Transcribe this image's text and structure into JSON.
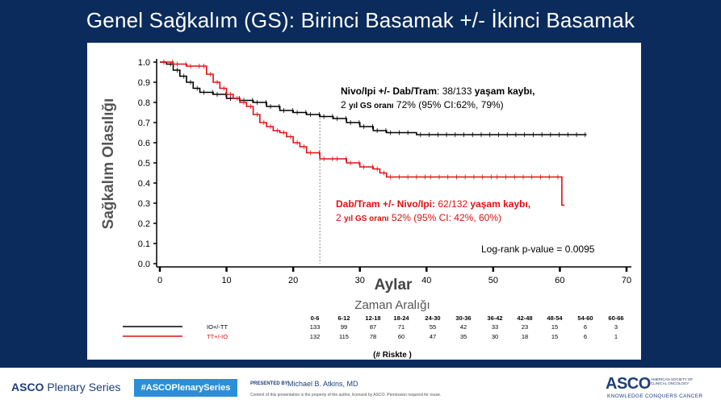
{
  "slide": {
    "title": "Genel Sağkalım (GS): Birinci Basamak +/- İkinci Basamak"
  },
  "chart_data": {
    "type": "line",
    "subtype": "kaplan-meier",
    "ylabel": "Sağkalım Olasılığı",
    "xlabel": "Aylar",
    "xlim": [
      0,
      70
    ],
    "ylim": [
      0,
      1.0
    ],
    "x_ticks": [
      0,
      10,
      20,
      30,
      40,
      50,
      60,
      70
    ],
    "y_ticks": [
      "0.0",
      "0.1",
      "0.2",
      "0.3",
      "0.4",
      "0.5",
      "0.6",
      "0.7",
      "0.8",
      "0.9",
      "1.0"
    ],
    "grid": false,
    "reference_line_x": 24,
    "series": [
      {
        "name": "IO+/-TT",
        "color": "#000000",
        "points": [
          [
            0,
            1.0
          ],
          [
            1,
            0.99
          ],
          [
            2,
            0.96
          ],
          [
            3,
            0.93
          ],
          [
            4,
            0.9
          ],
          [
            5,
            0.87
          ],
          [
            6,
            0.85
          ],
          [
            8,
            0.84
          ],
          [
            10,
            0.82
          ],
          [
            12,
            0.81
          ],
          [
            14,
            0.8
          ],
          [
            16,
            0.78
          ],
          [
            18,
            0.76
          ],
          [
            20,
            0.75
          ],
          [
            22,
            0.74
          ],
          [
            24,
            0.73
          ],
          [
            26,
            0.72
          ],
          [
            28,
            0.7
          ],
          [
            30,
            0.68
          ],
          [
            32,
            0.66
          ],
          [
            34,
            0.65
          ],
          [
            38,
            0.65
          ],
          [
            38.5,
            0.64
          ],
          [
            64,
            0.64
          ]
        ],
        "annotation_bold": "Nivo/Ipi +/- Dab/Tram",
        "annotation_rest": ": 38/133 ",
        "annotation_bold2": "yaşam kaybı,",
        "annotation_line2_prefix": "2 ",
        "annotation_line2_bold": "yıl GS oranı",
        "annotation_line2_rest": " 72% (95% CI:62%, 79%)"
      },
      {
        "name": "TT+/-IO",
        "color": "#e01010",
        "points": [
          [
            0,
            1.0
          ],
          [
            2,
            0.99
          ],
          [
            4,
            0.98
          ],
          [
            6,
            0.98
          ],
          [
            7,
            0.94
          ],
          [
            8,
            0.9
          ],
          [
            9,
            0.87
          ],
          [
            10,
            0.84
          ],
          [
            11,
            0.82
          ],
          [
            12,
            0.8
          ],
          [
            13,
            0.78
          ],
          [
            14,
            0.74
          ],
          [
            15,
            0.7
          ],
          [
            16,
            0.68
          ],
          [
            17,
            0.66
          ],
          [
            18,
            0.65
          ],
          [
            19,
            0.63
          ],
          [
            20,
            0.6
          ],
          [
            21,
            0.58
          ],
          [
            22,
            0.55
          ],
          [
            24,
            0.52
          ],
          [
            26,
            0.52
          ],
          [
            28,
            0.5
          ],
          [
            30,
            0.48
          ],
          [
            32,
            0.47
          ],
          [
            33,
            0.45
          ],
          [
            34,
            0.43
          ],
          [
            40,
            0.43
          ],
          [
            50,
            0.43
          ],
          [
            60,
            0.43
          ],
          [
            60.3,
            0.29
          ],
          [
            60.7,
            0.29
          ]
        ],
        "annotation_bold": "Dab/Tram +/- Nivo/Ipi:",
        "annotation_rest": " 62/132 ",
        "annotation_bold2": "yaşam kaybı,",
        "annotation_line2_prefix": "2 ",
        "annotation_line2_bold": "yıl GS oranı",
        "annotation_line2_rest": " 52% (95% CI: 42%, 60%)"
      }
    ],
    "logrank": "Log-rank p-value = 0.0095",
    "risk_table": {
      "title": "Zaman Aralığı",
      "intervals": [
        "0-6",
        "6-12",
        "12-18",
        "18-24",
        "24-30",
        "30-36",
        "36-42",
        "42-48",
        "48-54",
        "54-60",
        "60-66"
      ],
      "rows": [
        {
          "label": "IO+/-TT",
          "color": "#000000",
          "values": [
            "133",
            "99",
            "87",
            "71",
            "55",
            "42",
            "33",
            "23",
            "15",
            "6",
            "3"
          ]
        },
        {
          "label": "TT+/-IO",
          "color": "#e01010",
          "values": [
            "132",
            "115",
            "78",
            "60",
            "47",
            "35",
            "30",
            "18",
            "15",
            "6",
            "1"
          ]
        }
      ],
      "footer": "(# Riskte )"
    }
  },
  "footer": {
    "series_bold": "ASCO",
    "series_rest": " Plenary Series",
    "hashtag": "#ASCOPlenarySeries",
    "presented_by": "PRESENTED BY:",
    "presenter": "Michael B. Atkins, MD",
    "disclaimer": "Content of this presentation is the property of the author, licensed by ASCO. Permission required for reuse.",
    "logo": "ASCO",
    "logo_sub": "AMERICAN SOCIETY OF CLINICAL ONCOLOGY",
    "tagline": "KNOWLEDGE CONQUERS CANCER"
  }
}
